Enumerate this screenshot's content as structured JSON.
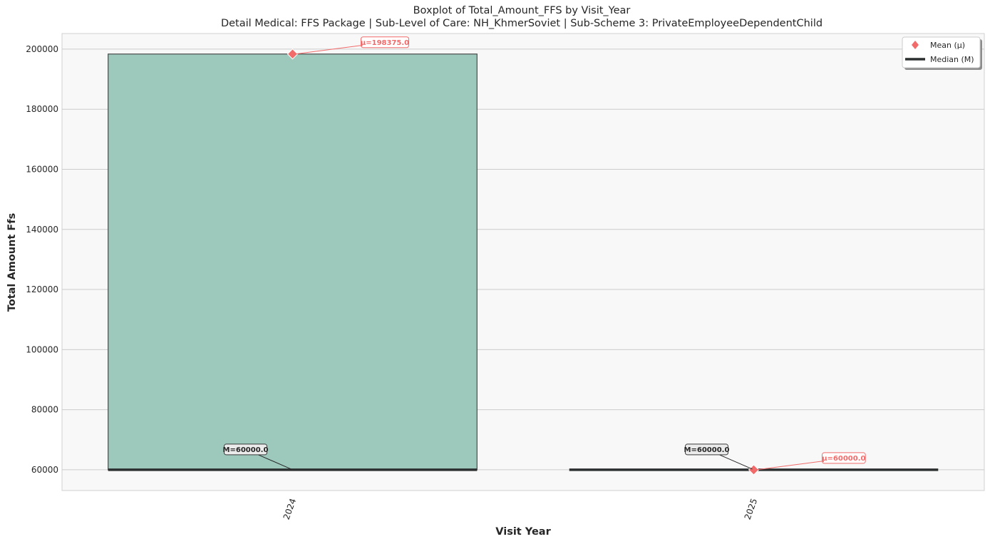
{
  "chart_data": {
    "type": "box",
    "title": "Boxplot of Total_Amount_FFS by Visit_Year",
    "subtitle": "Detail Medical: FFS Package | Sub-Level of Care: NH_KhmerSoviet | Sub-Scheme 3: PrivateEmployeeDependentChild",
    "xlabel": "Visit Year",
    "ylabel": "Total Amount Ffs",
    "categories": [
      "2024",
      "2025"
    ],
    "ylim": [
      53100,
      205200
    ],
    "yticks": [
      60000,
      80000,
      100000,
      120000,
      140000,
      160000,
      180000,
      200000
    ],
    "boxes": [
      {
        "category": "2024",
        "q1": 60000,
        "median": 60000,
        "q3": 198375,
        "mean": 198375.0,
        "median_label": "M=60000.0",
        "mean_label": "μ=198375.0",
        "color": "#9dc9bc"
      },
      {
        "category": "2025",
        "q1": 60000,
        "median": 60000,
        "q3": 60000,
        "mean": 60000.0,
        "median_label": "M=60000.0",
        "mean_label": "μ=60000.0",
        "color": "#9dc9bc"
      }
    ],
    "legend": {
      "position": "top-right",
      "entries": [
        "Mean (μ)",
        "Median (M)"
      ]
    },
    "grid": true,
    "colors": {
      "mean": "#f26b6b",
      "median": "#2b2f2f",
      "background": "#f8f8f8",
      "grid": "#cccccc"
    }
  }
}
